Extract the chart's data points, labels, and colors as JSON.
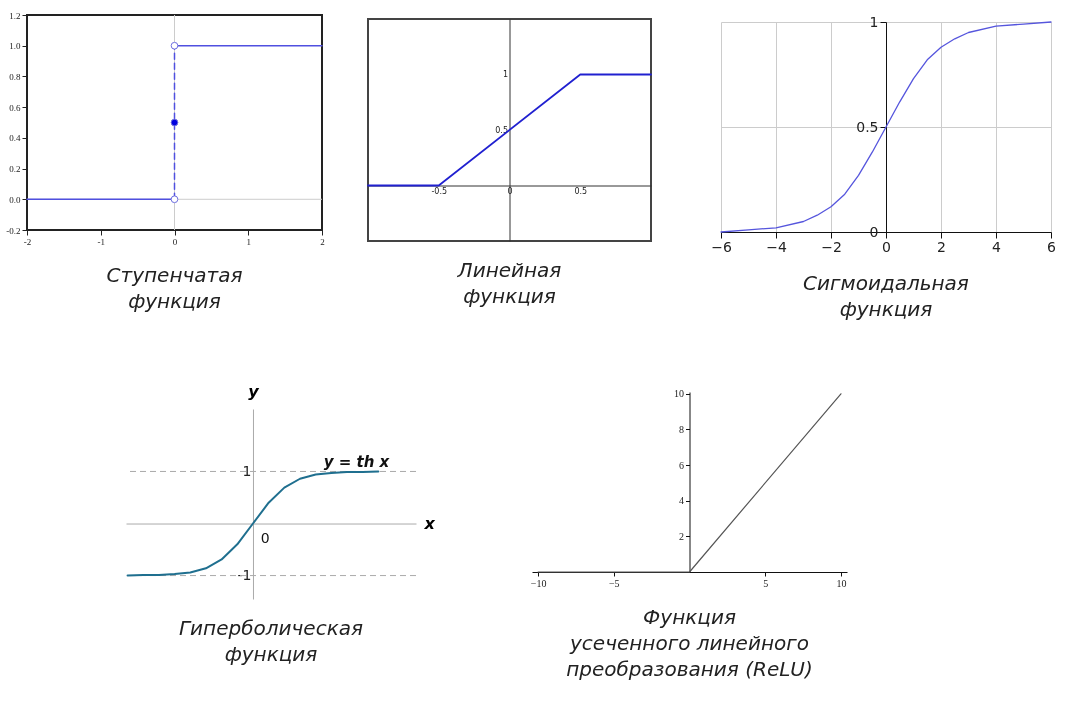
{
  "chart_data": [
    {
      "type": "line",
      "title": "Ступенчатая\nфункция",
      "xlim": [
        -2,
        2
      ],
      "ylim": [
        -0.2,
        1.2
      ],
      "xticks": [
        -2,
        -1,
        0,
        1,
        2
      ],
      "yticks": [
        -0.2,
        {
          "value": 0,
          "label": "0.0"
        },
        0.2,
        0.4,
        0.6,
        0.8,
        {
          "value": 1,
          "label": "1.0"
        },
        1.2
      ],
      "ref_lines": [
        {
          "axis": "x",
          "value": 0,
          "color": "#cccccc"
        },
        {
          "axis": "y",
          "value": 0,
          "color": "#cccccc"
        }
      ],
      "series": [
        {
          "type": "line",
          "x": [
            -2,
            0
          ],
          "values": [
            0,
            0
          ],
          "color": "#5050e0"
        },
        {
          "type": "line",
          "x": [
            0,
            2
          ],
          "values": [
            1,
            1
          ],
          "color": "#5050e0"
        },
        {
          "type": "line",
          "x": [
            0,
            0
          ],
          "values": [
            0,
            1
          ],
          "color": "#5050e0",
          "line_style": "dashed"
        },
        {
          "type": "scatter",
          "x": [
            0
          ],
          "values": [
            0.5
          ],
          "color": "#0000e0",
          "marker": "circle"
        },
        {
          "type": "scatter",
          "x": [
            0,
            0
          ],
          "values": [
            0,
            1
          ],
          "color": "#ffffff",
          "marker": "circle"
        }
      ]
    },
    {
      "type": "line",
      "title": "Линейная\nфункция",
      "xlim": [
        -1,
        1
      ],
      "ylim": [
        -0.5,
        1.5
      ],
      "xticks": [
        -0.5,
        0,
        0.5
      ],
      "yticks": [
        0.5,
        1
      ],
      "series": [
        {
          "x": [
            -1,
            -0.5,
            0.5,
            1
          ],
          "values": [
            0,
            0,
            1,
            1
          ],
          "color": "#2020d0"
        }
      ]
    },
    {
      "type": "line",
      "title": "Сигмоидальная\nфункция",
      "xlim": [
        -6,
        6
      ],
      "ylim": [
        0,
        1
      ],
      "grid": true,
      "xticks": [
        {
          "value": -6,
          "label": "−6"
        },
        {
          "value": -4,
          "label": "−4"
        },
        {
          "value": -2,
          "label": "−2"
        },
        0,
        2,
        4,
        6
      ],
      "yticks": [
        0,
        0.5,
        1
      ],
      "series": [
        {
          "x": [
            -6,
            -5,
            -4,
            -3,
            -2.5,
            -2,
            -1.5,
            -1,
            -0.5,
            0,
            0.5,
            1,
            1.5,
            2,
            2.5,
            3,
            4,
            5,
            6
          ],
          "values": [
            0.0,
            0.01,
            0.02,
            0.05,
            0.08,
            0.12,
            0.18,
            0.27,
            0.38,
            0.5,
            0.62,
            0.73,
            0.82,
            0.88,
            0.92,
            0.95,
            0.98,
            0.99,
            1.0
          ],
          "color": "#5555dd"
        }
      ]
    },
    {
      "type": "line",
      "title": "Гиперболическая\nфункция",
      "xlabel": "x",
      "ylabel": "y",
      "ylim": [
        -1.45,
        2.2
      ],
      "yticks": [
        1,
        -1
      ],
      "categories": [
        null,
        null,
        null,
        null,
        null,
        null,
        null,
        null,
        null,
        null,
        null,
        null,
        null,
        null,
        null,
        null,
        null
      ],
      "ref_lines": [
        {
          "axis": "y",
          "value": 1,
          "color": "#aaaaaa",
          "line_style": "dashed"
        },
        {
          "axis": "y",
          "value": -1,
          "color": "#aaaaaa",
          "line_style": "dashed"
        }
      ],
      "annotations": [
        "y = th x",
        "0"
      ],
      "series": [
        {
          "values": [
            -1.0,
            -0.99,
            -0.99,
            -0.97,
            -0.94,
            -0.86,
            -0.69,
            -0.4,
            0,
            0.4,
            0.69,
            0.86,
            0.94,
            0.97,
            0.99,
            0.99,
            1.0
          ],
          "color": "#1f6f8f"
        }
      ]
    },
    {
      "type": "line",
      "title": "Функция\nусеченного линейного\nпреобразования (ReLU)",
      "xlim": [
        -10.4,
        10.4
      ],
      "ylim": [
        0,
        10.1
      ],
      "xticks": [
        {
          "value": -10,
          "label": "−10"
        },
        {
          "value": -5,
          "label": "−5"
        },
        5,
        10
      ],
      "yticks": [
        2,
        4,
        6,
        8,
        10
      ],
      "series": [
        {
          "x": [
            -10,
            0,
            10
          ],
          "values": [
            0,
            0,
            10
          ],
          "color": "#555555"
        }
      ]
    }
  ]
}
